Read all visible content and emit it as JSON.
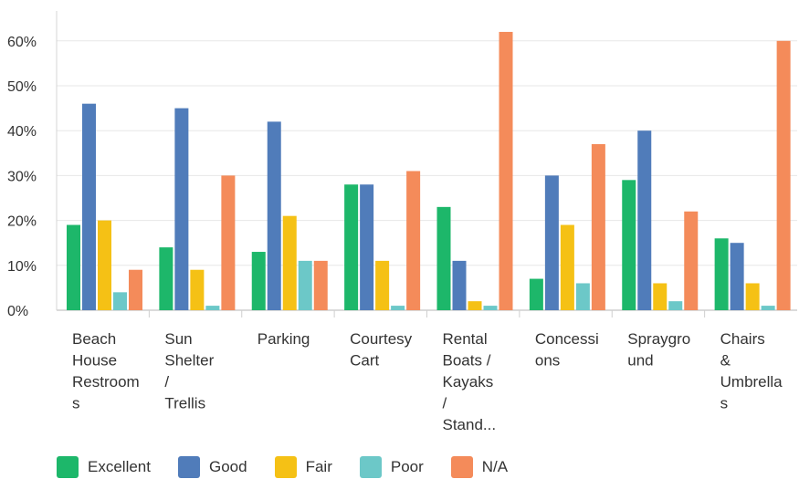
{
  "chart_data": {
    "type": "bar",
    "categories": [
      [
        "Beach",
        "House",
        "Restroom",
        "s"
      ],
      [
        "Sun",
        "Shelter",
        "/",
        "Trellis"
      ],
      [
        "Parking"
      ],
      [
        "Courtesy",
        "Cart"
      ],
      [
        "Rental",
        "Boats /",
        "Kayaks",
        "/",
        "Stand..."
      ],
      [
        "Concessi",
        "ons"
      ],
      [
        "Spraygro",
        "und"
      ],
      [
        "Chairs",
        "&",
        "Umbrella",
        "s"
      ]
    ],
    "series": [
      {
        "name": "Excellent",
        "color": "#1db76a",
        "values": [
          19,
          14,
          13,
          28,
          23,
          7,
          29,
          16
        ]
      },
      {
        "name": "Good",
        "color": "#507cba",
        "values": [
          46,
          45,
          42,
          28,
          11,
          30,
          40,
          15
        ]
      },
      {
        "name": "Fair",
        "color": "#f5c115",
        "values": [
          20,
          9,
          21,
          11,
          2,
          19,
          6,
          6
        ]
      },
      {
        "name": "Poor",
        "color": "#6cc8c8",
        "values": [
          4,
          1,
          11,
          1,
          1,
          6,
          2,
          1
        ]
      },
      {
        "name": "N/A",
        "color": "#f48b5a",
        "values": [
          9,
          30,
          11,
          31,
          62,
          37,
          22,
          60
        ]
      }
    ],
    "yticks": [
      "0%",
      "10%",
      "20%",
      "30%",
      "40%",
      "50%",
      "60%"
    ],
    "ylim": [
      0,
      60
    ],
    "grid": true,
    "legend_position": "bottom-left"
  }
}
